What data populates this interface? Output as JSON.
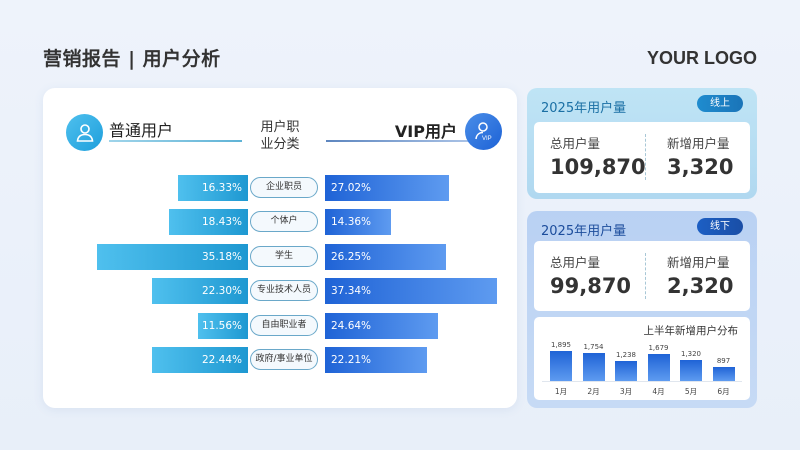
{
  "header": {
    "title": "营销报告 | 用户分析",
    "logo": "YOUR LOGO"
  },
  "comparison": {
    "left_group": "普通用户",
    "right_group": "VIP用户",
    "center_title": "用户职业分类",
    "center_title_line1": "用户职",
    "center_title_line2": "业分类",
    "colors": {
      "normal": "#1e98d1",
      "vip": "#1f63d6"
    }
  },
  "online_panel": {
    "title": "2025年用户量",
    "badge": "线上",
    "total_label": "总用户量",
    "total_value": "109,870",
    "new_label": "新增用户量",
    "new_value": "3,320"
  },
  "offline_panel": {
    "title": "2025年用户量",
    "badge": "线下",
    "total_label": "总用户量",
    "total_value": "99,870",
    "new_label": "新增用户量",
    "new_value": "2,320",
    "chart_title": "上半年新增用户分布"
  },
  "chart_data": [
    {
      "type": "bar",
      "title": "用户职业分类",
      "orientation": "horizontal-butterfly",
      "categories": [
        "企业职员",
        "个体户",
        "学生",
        "专业技术人员",
        "自由职业者",
        "政府/事业单位"
      ],
      "series": [
        {
          "name": "普通用户",
          "values": [
            16.33,
            18.43,
            35.18,
            22.3,
            11.56,
            22.44
          ],
          "labels": [
            "16.33%",
            "18.43%",
            "35.18%",
            "22.30%",
            "11.56%",
            "22.44%"
          ]
        },
        {
          "name": "VIP用户",
          "values": [
            27.02,
            14.36,
            26.25,
            37.34,
            24.64,
            22.21
          ],
          "labels": [
            "27.02%",
            "14.36%",
            "26.25%",
            "37.34%",
            "24.64%",
            "22.21%"
          ]
        }
      ],
      "unit": "%"
    },
    {
      "type": "bar",
      "title": "上半年新增用户分布",
      "categories": [
        "1月",
        "2月",
        "3月",
        "4月",
        "5月",
        "6月"
      ],
      "values": [
        1895,
        1754,
        1238,
        1679,
        1320,
        897
      ],
      "labels": [
        "1,895",
        "1,754",
        "1,238",
        "1,679",
        "1,320",
        "897"
      ],
      "xlabel": "",
      "ylabel": "",
      "grid": false
    }
  ]
}
